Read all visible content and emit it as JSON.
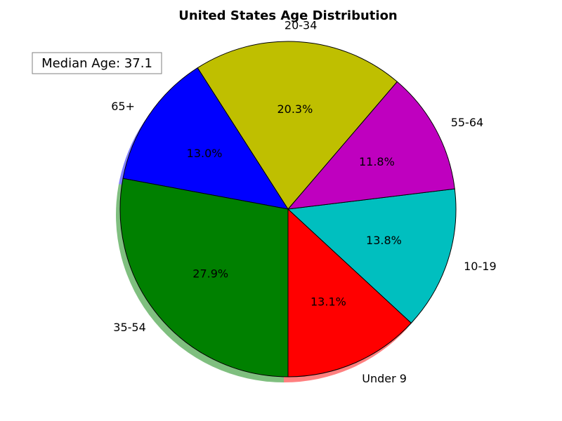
{
  "chart_data": {
    "type": "pie",
    "title": "United States Age Distribution",
    "labels": [
      "Under 9",
      "10-19",
      "55-64",
      "20-34",
      "65+",
      "35-54"
    ],
    "values": [
      13.1,
      13.8,
      11.8,
      20.3,
      13.0,
      27.9
    ],
    "pct_labels": [
      "13.1%",
      "13.8%",
      "11.8%",
      "20.3%",
      "13.0%",
      "27.9%"
    ],
    "colors": [
      "#ff0000",
      "#00bfbf",
      "#bf00bf",
      "#bfbf00",
      "#0000ff",
      "#008000"
    ],
    "start_angle_deg": 270,
    "shadow": true,
    "annotation": "Median Age: 37.1"
  }
}
